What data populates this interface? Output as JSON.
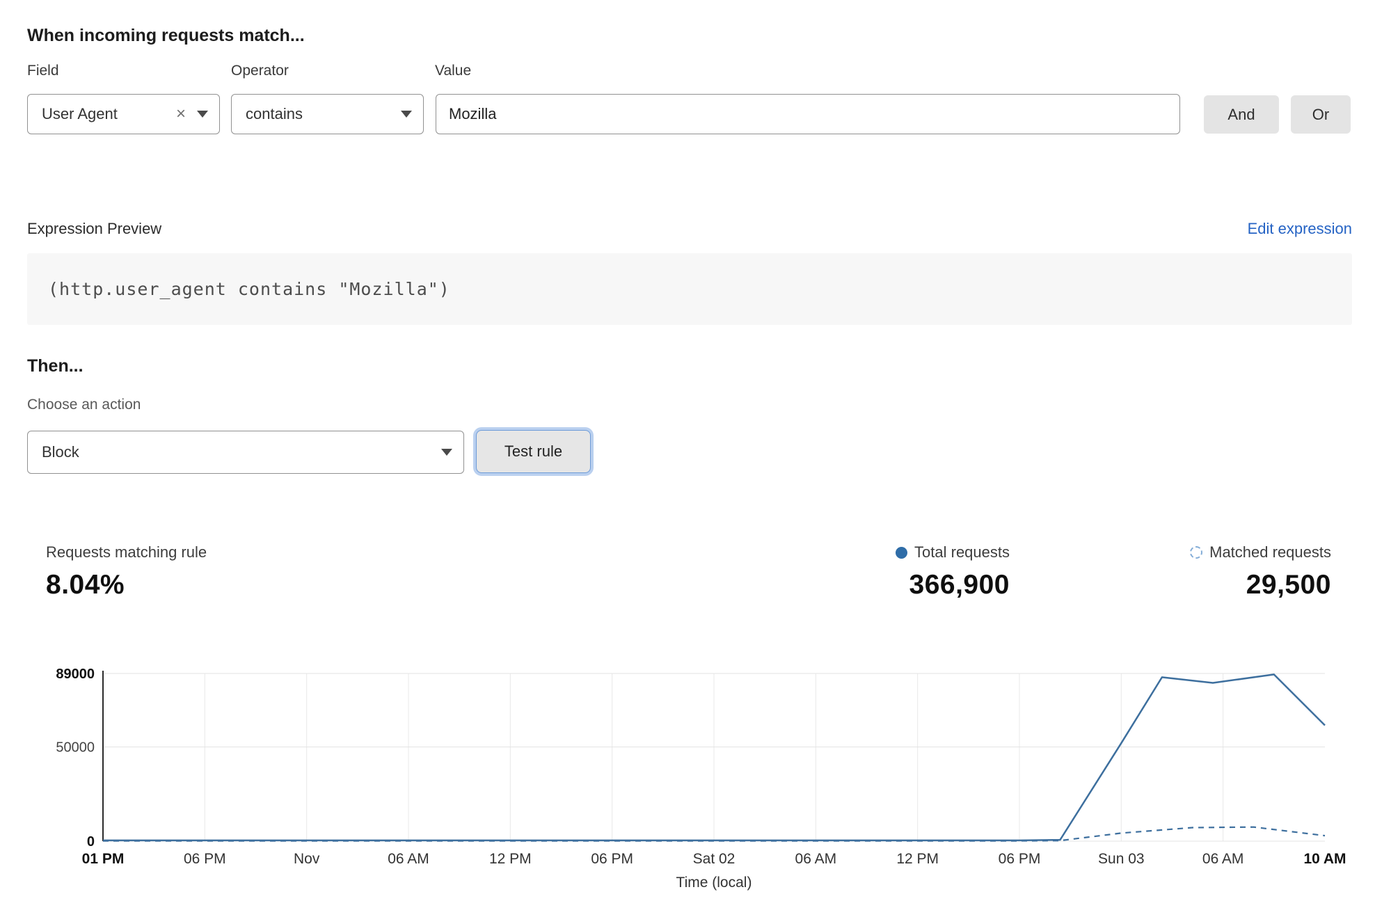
{
  "header": {
    "title": "When incoming requests match..."
  },
  "rule_builder": {
    "field_label": "Field",
    "operator_label": "Operator",
    "value_label": "Value",
    "field_selected": "User Agent",
    "operator_selected": "contains",
    "value_text": "Mozilla",
    "and_button": "And",
    "or_button": "Or"
  },
  "expression_preview": {
    "label": "Expression Preview",
    "edit_link": "Edit expression",
    "code": "(http.user_agent contains \"Mozilla\")"
  },
  "then_section": {
    "title": "Then...",
    "choose_action_label": "Choose an action",
    "action_selected": "Block",
    "test_rule_button": "Test rule"
  },
  "stats": {
    "matching_label": "Requests matching rule",
    "matching_value": "8.04%",
    "total_label": "Total requests",
    "total_value": "366,900",
    "matched_label": "Matched requests",
    "matched_value": "29,500"
  },
  "colors": {
    "line_blue": "#3d6f9e",
    "legend_dot_blue": "#2f6da8",
    "link_blue": "#2563c4",
    "focus_ring_blue": "#9fc1ec"
  },
  "chart_data": {
    "type": "line",
    "title": "",
    "xlabel": "Time (local)",
    "ylabel": "",
    "ylim": [
      0,
      89000
    ],
    "grid": true,
    "legend_position": "top-right",
    "yticks": [
      {
        "label": "89000",
        "value": 89000,
        "bold": true
      },
      {
        "label": "50000",
        "value": 50000,
        "bold": false
      },
      {
        "label": "0",
        "value": 0,
        "bold": true
      }
    ],
    "x_ticks": [
      {
        "label": "01 PM",
        "bold": true
      },
      {
        "label": "06 PM",
        "bold": false
      },
      {
        "label": "Nov",
        "bold": false
      },
      {
        "label": "06 AM",
        "bold": false
      },
      {
        "label": "12 PM",
        "bold": false
      },
      {
        "label": "06 PM",
        "bold": false
      },
      {
        "label": "Sat 02",
        "bold": false
      },
      {
        "label": "06 AM",
        "bold": false
      },
      {
        "label": "12 PM",
        "bold": false
      },
      {
        "label": "06 PM",
        "bold": false
      },
      {
        "label": "Sun 03",
        "bold": false
      },
      {
        "label": "06 AM",
        "bold": false
      },
      {
        "label": "10 AM",
        "bold": true
      }
    ],
    "series": [
      {
        "name": "Total requests",
        "style": "solid",
        "color": "#3d6f9e",
        "points": [
          [
            0,
            400
          ],
          [
            1,
            400
          ],
          [
            2,
            400
          ],
          [
            3,
            400
          ],
          [
            4,
            400
          ],
          [
            5,
            400
          ],
          [
            6,
            400
          ],
          [
            7,
            400
          ],
          [
            8,
            400
          ],
          [
            9,
            400
          ],
          [
            9.4,
            700
          ],
          [
            10,
            52000
          ],
          [
            10.4,
            87000
          ],
          [
            10.9,
            84000
          ],
          [
            11.5,
            88500
          ],
          [
            12,
            61500
          ]
        ]
      },
      {
        "name": "Matched requests",
        "style": "dashed",
        "color": "#3d6f9e",
        "points": [
          [
            0,
            150
          ],
          [
            1,
            150
          ],
          [
            2,
            150
          ],
          [
            3,
            150
          ],
          [
            4,
            150
          ],
          [
            5,
            150
          ],
          [
            6,
            150
          ],
          [
            7,
            150
          ],
          [
            8,
            150
          ],
          [
            9,
            150
          ],
          [
            9.4,
            300
          ],
          [
            10,
            4300
          ],
          [
            10.7,
            7200
          ],
          [
            11.3,
            7500
          ],
          [
            12,
            2900
          ]
        ]
      }
    ]
  }
}
